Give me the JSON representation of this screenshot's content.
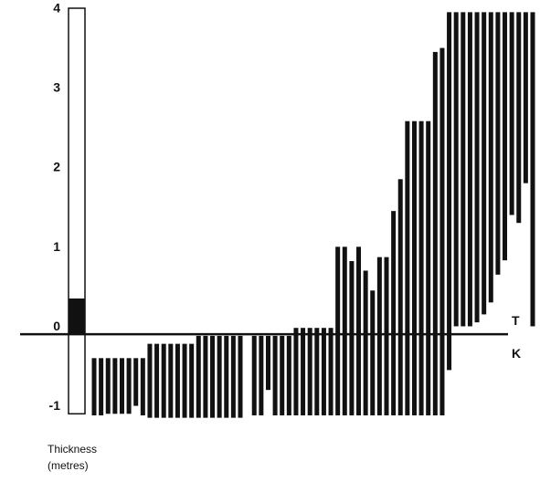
{
  "chart_data": {
    "type": "range_bar",
    "axis_title_lines": [
      "Thickness",
      "(metres)"
    ],
    "boundary": 0,
    "boundary_labels": {
      "above": "T",
      "below": "K"
    },
    "thickness_scale": {
      "low": -1,
      "high": 4.1,
      "filled_low": 0,
      "filled_high": 0.45
    },
    "ylim": [
      -1.1,
      4.1
    ],
    "yticks": [
      -1,
      0,
      1,
      2,
      3,
      4
    ],
    "color": "#111111",
    "high": [
      -0.3,
      -0.3,
      -0.3,
      -0.3,
      -0.3,
      -0.3,
      -0.3,
      -0.3,
      -0.12,
      -0.12,
      -0.12,
      -0.12,
      -0.12,
      -0.12,
      -0.12,
      -0.02,
      -0.02,
      -0.02,
      -0.02,
      -0.02,
      -0.02,
      -0.02,
      null,
      -0.02,
      -0.02,
      -0.02,
      -0.02,
      -0.02,
      -0.02,
      0.08,
      0.08,
      0.08,
      0.08,
      0.08,
      0.08,
      1.1,
      1.1,
      0.92,
      1.1,
      0.8,
      0.55,
      0.97,
      0.97,
      1.55,
      1.95,
      2.68,
      2.68,
      2.68,
      2.68,
      3.55,
      3.6,
      4.05,
      4.05,
      4.05,
      4.05,
      4.05,
      4.05,
      4.05,
      4.05,
      4.05,
      4.05,
      4.05,
      4.05,
      4.05
    ],
    "low": [
      -1.02,
      -1.02,
      -1.0,
      -1.0,
      -1.0,
      -1.0,
      -0.9,
      -1.02,
      -1.05,
      -1.05,
      -1.05,
      -1.05,
      -1.05,
      -1.05,
      -1.05,
      -1.05,
      -1.05,
      -1.05,
      -1.05,
      -1.05,
      -1.05,
      -1.05,
      null,
      -1.02,
      -1.02,
      -0.7,
      -1.02,
      -1.02,
      -1.02,
      -1.02,
      -1.02,
      -1.02,
      -1.02,
      -1.02,
      -1.02,
      -1.02,
      -1.02,
      -1.02,
      -1.02,
      -1.02,
      -1.02,
      -1.02,
      -1.02,
      -1.02,
      -1.02,
      -1.02,
      -1.02,
      -1.02,
      -1.02,
      -1.02,
      -1.02,
      -0.45,
      0.1,
      0.1,
      0.1,
      0.15,
      0.25,
      0.4,
      0.75,
      0.93,
      1.5,
      1.4,
      1.9,
      0.1
    ]
  }
}
